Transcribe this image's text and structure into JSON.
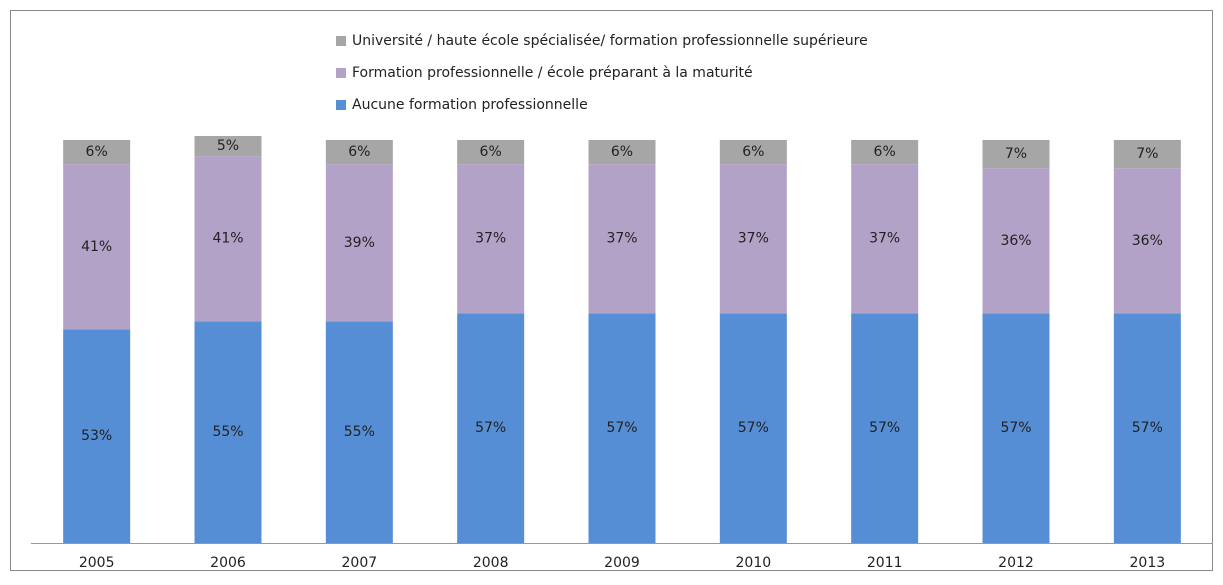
{
  "chart_data": {
    "type": "stacked-bar",
    "categories": [
      "2005",
      "2006",
      "2007",
      "2008",
      "2009",
      "2010",
      "2011",
      "2012",
      "2013"
    ],
    "series": [
      {
        "name": "Aucune formation professionnelle",
        "color": "#558ed5",
        "values": [
          53,
          55,
          55,
          57,
          57,
          57,
          57,
          57,
          57
        ],
        "value_labels": [
          "53%",
          "55%",
          "55%",
          "57%",
          "57%",
          "57%",
          "57%",
          "57%",
          "57%"
        ]
      },
      {
        "name": "Formation professionnelle / école préparant à la maturité",
        "color": "#b3a2c7",
        "values": [
          41,
          41,
          39,
          37,
          37,
          37,
          37,
          36,
          36
        ],
        "value_labels": [
          "41%",
          "41%",
          "39%",
          "37%",
          "37%",
          "37%",
          "37%",
          "36%",
          "36%"
        ]
      },
      {
        "name": "Université / haute école spécialisée/ formation professionnelle supérieure",
        "color": "#a6a6a6",
        "values": [
          6,
          5,
          6,
          6,
          6,
          6,
          6,
          7,
          7
        ],
        "value_labels": [
          "6%",
          "5%",
          "6%",
          "6%",
          "6%",
          "6%",
          "6%",
          "7%",
          "7%"
        ]
      }
    ],
    "ylim": [
      0,
      100
    ]
  }
}
